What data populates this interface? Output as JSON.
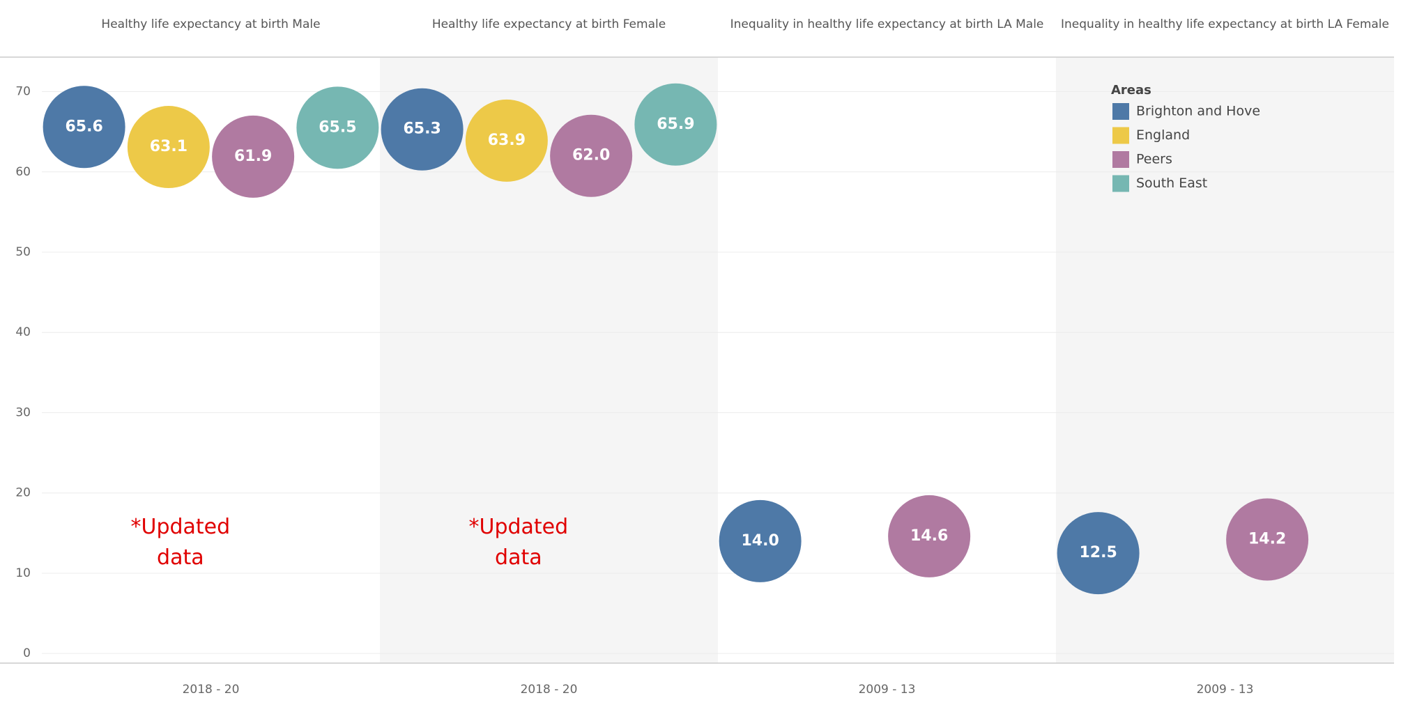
{
  "chart_data": {
    "type": "bubble",
    "panels": [
      "Healthy life expectancy at birth Male",
      "Healthy life expectancy at birth Female",
      "Inequality in healthy life expectancy at birth LA Male",
      "Inequality in healthy life expectancy at birth LA Female"
    ],
    "categories": [
      "2018 - 20",
      "2018 - 20",
      "2009 - 13",
      "2009 - 13"
    ],
    "legend_title": "Areas",
    "series": [
      {
        "name": "Brighton and Hove",
        "color": "#4e79a7",
        "values": [
          65.6,
          65.3,
          14.0,
          12.5
        ],
        "value_labels": [
          "65.6",
          "65.3",
          "14.0",
          "12.5"
        ]
      },
      {
        "name": "England",
        "color": "#edc948",
        "values": [
          63.1,
          63.9,
          null,
          null
        ],
        "value_labels": [
          "63.1",
          "63.9",
          null,
          null
        ]
      },
      {
        "name": "Peers",
        "color": "#b07aa1",
        "values": [
          61.9,
          62.0,
          14.6,
          14.2
        ],
        "value_labels": [
          "61.9",
          "62.0",
          "14.6",
          "14.2"
        ]
      },
      {
        "name": "South East",
        "color": "#76b7b2",
        "values": [
          65.5,
          65.9,
          null,
          null
        ],
        "value_labels": [
          "65.5",
          "65.9",
          null,
          null
        ]
      }
    ],
    "annotations": [
      "*Updated data",
      "*Updated data"
    ],
    "ylim": [
      -1.2,
      74.3
    ],
    "yticks": [
      0,
      10,
      20,
      30,
      40,
      50,
      60,
      70
    ],
    "grid": true
  }
}
